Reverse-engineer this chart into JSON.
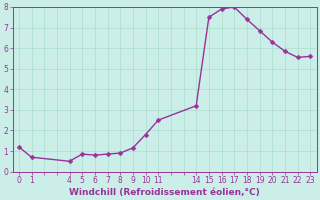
{
  "x": [
    0,
    1,
    4,
    5,
    6,
    7,
    8,
    9,
    10,
    11,
    14,
    15,
    16,
    17,
    18,
    19,
    20,
    21,
    22,
    23
  ],
  "y": [
    1.2,
    0.7,
    0.5,
    0.85,
    0.8,
    0.85,
    0.9,
    1.15,
    1.8,
    2.5,
    3.2,
    7.5,
    7.9,
    8.0,
    7.4,
    6.85,
    6.3,
    5.85,
    5.55,
    5.6
  ],
  "line_color": "#993399",
  "marker_color": "#993399",
  "bg_color": "#cceee8",
  "grid_color": "#aaddcc",
  "xlabel": "Windchill (Refroidissement éolien,°C)",
  "xlim": [
    -0.5,
    23.5
  ],
  "ylim": [
    0,
    8
  ],
  "xticks_all": [
    0,
    1,
    2,
    3,
    4,
    5,
    6,
    7,
    8,
    9,
    10,
    11,
    12,
    13,
    14,
    15,
    16,
    17,
    18,
    19,
    20,
    21,
    22,
    23
  ],
  "xtick_labels_show": [
    0,
    1,
    4,
    5,
    6,
    7,
    8,
    9,
    10,
    11,
    14,
    15,
    16,
    17,
    18,
    19,
    20,
    21,
    22,
    23
  ],
  "yticks": [
    0,
    1,
    2,
    3,
    4,
    5,
    6,
    7,
    8
  ],
  "tick_color": "#993399",
  "tick_fontsize": 5.5,
  "xlabel_fontsize": 6.5,
  "marker_size": 2.5,
  "line_width": 1.0
}
